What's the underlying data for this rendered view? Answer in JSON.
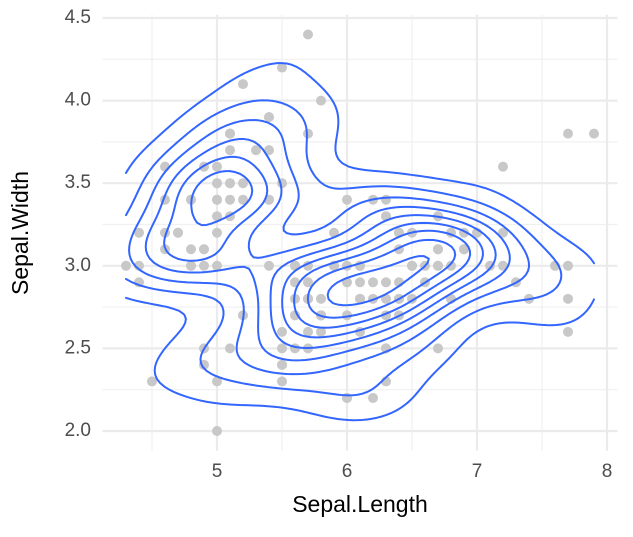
{
  "chart_data": {
    "type": "scatter",
    "x_label": "Sepal.Length",
    "y_label": "Sepal.Width",
    "x": [
      5.1,
      4.9,
      4.7,
      4.6,
      5.0,
      5.4,
      4.6,
      5.0,
      4.4,
      4.9,
      5.4,
      4.8,
      4.8,
      4.3,
      5.8,
      5.7,
      5.4,
      5.1,
      5.7,
      5.1,
      5.4,
      5.1,
      4.6,
      5.1,
      4.8,
      5.0,
      5.0,
      5.2,
      5.2,
      4.7,
      4.8,
      5.4,
      5.2,
      5.5,
      4.9,
      5.0,
      5.5,
      4.9,
      4.4,
      5.1,
      5.0,
      4.5,
      4.4,
      5.0,
      5.1,
      4.8,
      5.1,
      4.6,
      5.3,
      5.0,
      7.0,
      6.4,
      6.9,
      5.5,
      6.5,
      5.7,
      6.3,
      4.9,
      6.6,
      5.2,
      5.0,
      5.9,
      6.0,
      6.1,
      5.6,
      6.7,
      5.6,
      5.8,
      6.2,
      5.6,
      5.9,
      6.1,
      6.3,
      6.1,
      6.4,
      6.6,
      6.8,
      6.7,
      6.0,
      5.7,
      5.5,
      5.5,
      5.8,
      6.0,
      5.4,
      6.0,
      6.7,
      6.3,
      5.6,
      5.5,
      5.5,
      6.1,
      5.8,
      5.0,
      5.6,
      5.7,
      5.7,
      6.2,
      5.1,
      5.7,
      6.3,
      5.8,
      7.1,
      6.3,
      6.5,
      7.6,
      4.9,
      7.3,
      6.7,
      7.2,
      6.5,
      6.4,
      6.8,
      5.7,
      5.8,
      6.4,
      6.5,
      7.7,
      7.7,
      6.0,
      6.9,
      5.6,
      7.7,
      6.3,
      6.7,
      7.2,
      6.2,
      6.1,
      6.4,
      7.2,
      7.4,
      7.9,
      6.4,
      6.3,
      6.1,
      7.7,
      6.3,
      6.4,
      6.0,
      6.9,
      6.7,
      6.9,
      5.8,
      6.8,
      6.7,
      6.7,
      6.3,
      6.5,
      6.2,
      5.9
    ],
    "values": [
      3.5,
      3.0,
      3.2,
      3.1,
      3.6,
      3.9,
      3.4,
      3.4,
      2.9,
      3.1,
      3.7,
      3.4,
      3.0,
      3.0,
      4.0,
      4.4,
      3.9,
      3.5,
      3.8,
      3.8,
      3.4,
      3.7,
      3.6,
      3.3,
      3.4,
      3.0,
      3.4,
      3.5,
      3.4,
      3.2,
      3.1,
      3.4,
      4.1,
      4.2,
      3.1,
      3.2,
      3.5,
      3.6,
      3.0,
      3.4,
      3.5,
      2.3,
      3.2,
      3.5,
      3.8,
      3.0,
      3.8,
      3.2,
      3.7,
      3.3,
      3.2,
      3.2,
      3.1,
      2.3,
      2.8,
      2.8,
      3.3,
      2.4,
      2.9,
      2.7,
      2.0,
      3.0,
      2.2,
      2.9,
      2.9,
      3.1,
      3.0,
      2.7,
      2.2,
      2.5,
      3.2,
      2.8,
      2.5,
      2.8,
      2.9,
      3.0,
      2.8,
      3.0,
      2.9,
      2.6,
      2.4,
      2.4,
      2.7,
      2.7,
      3.0,
      3.4,
      3.1,
      2.3,
      3.0,
      2.5,
      2.6,
      3.0,
      2.6,
      2.3,
      2.7,
      3.0,
      2.9,
      2.9,
      2.5,
      2.8,
      3.3,
      2.7,
      3.0,
      2.9,
      3.0,
      3.0,
      2.5,
      2.9,
      2.5,
      3.6,
      3.2,
      2.7,
      3.0,
      2.5,
      2.8,
      3.2,
      3.0,
      3.8,
      2.6,
      2.2,
      3.2,
      2.8,
      2.8,
      2.7,
      3.3,
      3.2,
      2.8,
      3.0,
      2.8,
      3.0,
      2.8,
      3.8,
      2.8,
      2.8,
      2.6,
      3.0,
      3.4,
      3.1,
      3.0,
      3.1,
      3.1,
      3.1,
      2.7,
      3.2,
      3.3,
      3.0,
      2.5,
      3.0,
      3.4,
      3.0
    ],
    "point_color": "#c8c8c8",
    "contour_color": "#3366ff",
    "xlim": [
      4.12,
      8.08
    ],
    "xticks": [
      5,
      6,
      7,
      8
    ],
    "ylim": [
      1.88,
      4.52
    ],
    "yticks": [
      {
        "value": 2,
        "label": "2.0"
      },
      2.5,
      {
        "value": 3,
        "label": "3.0"
      },
      3.5,
      {
        "value": 4,
        "label": "4.0"
      },
      4.5
    ],
    "grid": true
  }
}
